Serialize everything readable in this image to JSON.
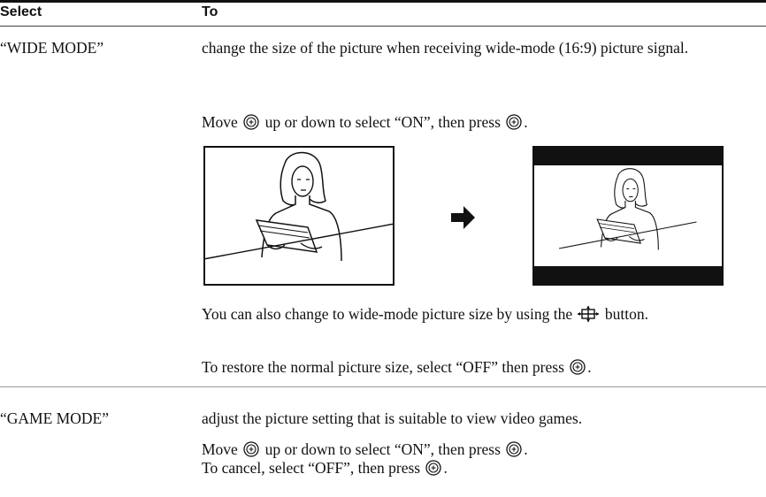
{
  "header": {
    "select": "Select",
    "to": "To"
  },
  "rows": [
    {
      "select": "“WIDE MODE”",
      "description": "change the size of the picture when receiving wide-mode (16:9) picture signal.",
      "instructions": [
        [
          "Move",
          "up or down to select “ON”, then press",
          "."
        ],
        [
          "You can also change to wide-mode picture size by using the",
          "button."
        ],
        [
          "To restore the normal picture size, select “OFF” then press",
          "."
        ]
      ]
    },
    {
      "select": "“GAME MODE”",
      "description": "adjust the picture setting that is suitable to view video games.",
      "instructions": [
        [
          "Move",
          "up or down to select “ON”, then press",
          "."
        ],
        [
          "To cancel, select “OFF”, then press",
          "."
        ]
      ]
    }
  ]
}
